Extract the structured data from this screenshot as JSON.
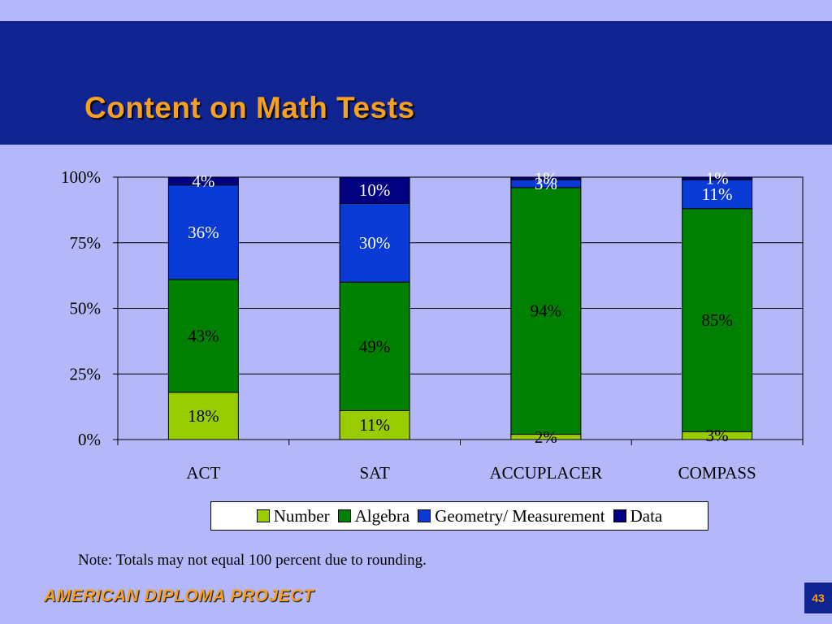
{
  "slide": {
    "title": "Content on Math Tests",
    "note": "Note: Totals may not equal 100 percent due to rounding.",
    "footer": "AMERICAN DIPLOMA PROJECT",
    "page_number": "43"
  },
  "colors": {
    "background": "#b4b8f8",
    "title_band": "#0f2490",
    "title_text": "#f5a020",
    "Number": "#99cc00",
    "Algebra": "#008000",
    "Geometry/ Measurement": "#0a3ad6",
    "Data": "#000080"
  },
  "chart_data": {
    "type": "bar",
    "stacked": true,
    "categories": [
      "ACT",
      "SAT",
      "ACCUPLACER",
      "COMPASS"
    ],
    "series": [
      {
        "name": "Number",
        "values": [
          18,
          11,
          2,
          3
        ],
        "labels": [
          "18%",
          "11%",
          "2%",
          "3%"
        ]
      },
      {
        "name": "Algebra",
        "values": [
          43,
          49,
          94,
          85
        ],
        "labels": [
          "43%",
          "49%",
          "94%",
          "85%"
        ]
      },
      {
        "name": "Geometry/ Measurement",
        "values": [
          36,
          30,
          3,
          11
        ],
        "labels": [
          "36%",
          "30%",
          "3%",
          "11%"
        ]
      },
      {
        "name": "Data",
        "values": [
          4,
          10,
          1,
          1
        ],
        "labels": [
          "4%",
          "10%",
          "1%",
          "1%"
        ]
      }
    ],
    "yticks": [
      "0%",
      "25%",
      "50%",
      "75%",
      "100%"
    ],
    "ylim": [
      0,
      100
    ],
    "grid": true,
    "legend_position": "bottom"
  }
}
